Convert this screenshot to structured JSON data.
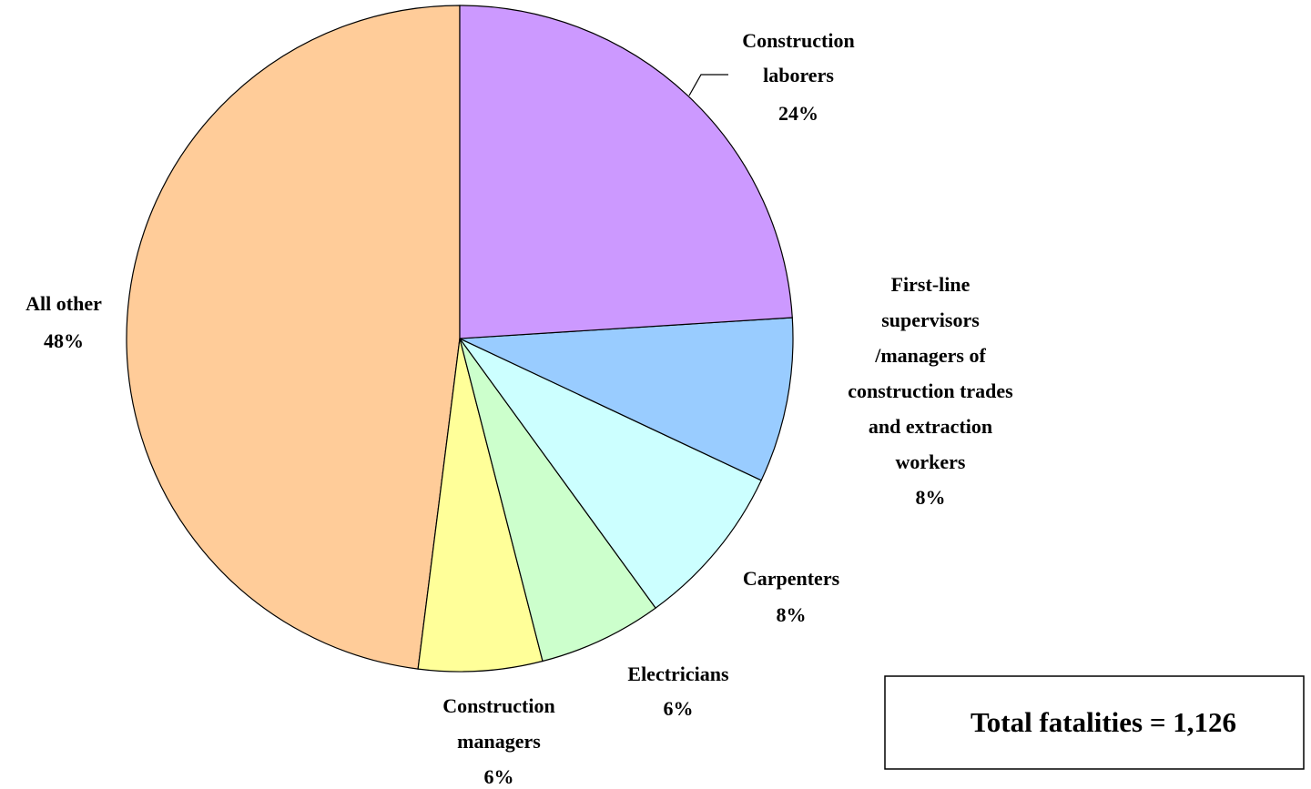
{
  "chart_data": {
    "type": "pie",
    "categories": [
      "Construction\nlaborers",
      "First-line\nsupervisors\n/managers of\nconstruction trades\nand extraction\nworkers",
      "Carpenters",
      "Electricians",
      "Construction\nmanagers",
      "All other"
    ],
    "values": [
      24,
      8,
      8,
      6,
      6,
      48
    ],
    "value_labels": [
      "24%",
      "8%",
      "8%",
      "6%",
      "6%",
      "48%"
    ],
    "colors": [
      "#cc99ff",
      "#99ccff",
      "#ccffff",
      "#ccffcc",
      "#ffff99",
      "#ffcc99"
    ],
    "annotation": "Total fatalities = 1,126"
  }
}
